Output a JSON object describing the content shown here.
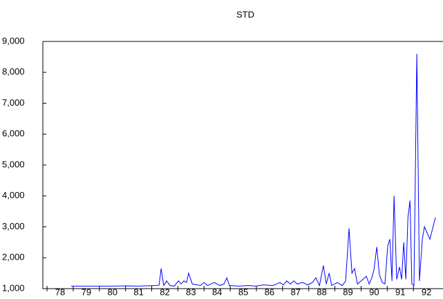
{
  "chart_data": {
    "type": "line",
    "title": "STD",
    "x": [
      1978.92,
      1979.64,
      1980.43,
      1981.09,
      1981.49,
      1982.15,
      1982.28,
      1982.36,
      1982.46,
      1982.57,
      1982.7,
      1982.86,
      1983.02,
      1983.12,
      1983.23,
      1983.33,
      1983.41,
      1983.55,
      1983.86,
      1984.0,
      1984.13,
      1984.39,
      1984.6,
      1984.76,
      1984.87,
      1984.97,
      1985.32,
      1985.71,
      1985.98,
      1986.24,
      1986.64,
      1986.9,
      1987.03,
      1987.16,
      1987.3,
      1987.43,
      1987.56,
      1987.77,
      1987.96,
      1988.14,
      1988.27,
      1988.41,
      1988.56,
      1988.67,
      1988.78,
      1988.88,
      1989.09,
      1989.28,
      1989.41,
      1989.54,
      1989.65,
      1989.75,
      1989.86,
      1990.07,
      1990.2,
      1990.31,
      1990.41,
      1990.49,
      1990.6,
      1990.7,
      1990.81,
      1990.91,
      1991.02,
      1991.1,
      1991.18,
      1991.26,
      1991.36,
      1991.47,
      1991.55,
      1991.63,
      1991.71,
      1991.79,
      1991.87,
      1991.94,
      1992.02,
      1992.13,
      1992.23,
      1992.34,
      1992.42,
      1992.63,
      1992.84
    ],
    "series": [
      {
        "name": "STD",
        "color": "#0000ff",
        "values": [
          1080,
          1080,
          1080,
          1090,
          1080,
          1100,
          1110,
          1650,
          1100,
          1250,
          1100,
          1080,
          1250,
          1150,
          1250,
          1200,
          1500,
          1150,
          1100,
          1200,
          1100,
          1200,
          1100,
          1150,
          1350,
          1100,
          1080,
          1100,
          1080,
          1120,
          1100,
          1200,
          1120,
          1250,
          1150,
          1250,
          1150,
          1200,
          1120,
          1200,
          1350,
          1100,
          1750,
          1150,
          1500,
          1100,
          1200,
          1100,
          1250,
          2950,
          1500,
          1650,
          1150,
          1300,
          1400,
          1150,
          1350,
          1600,
          2350,
          1450,
          1200,
          1150,
          2400,
          2600,
          1250,
          4000,
          1300,
          1700,
          1300,
          2500,
          1300,
          3300,
          3850,
          1150,
          1100,
          8600,
          1250,
          2600,
          3000,
          2600,
          3300
        ]
      }
    ],
    "xlim": [
      1977.84,
      1993.13
    ],
    "xticks": [
      {
        "value": 1978,
        "label": "78"
      },
      {
        "value": 1979,
        "label": "79"
      },
      {
        "value": 1980,
        "label": "80"
      },
      {
        "value": 1981,
        "label": "81"
      },
      {
        "value": 1982,
        "label": "82"
      },
      {
        "value": 1983,
        "label": "83"
      },
      {
        "value": 1984,
        "label": "84"
      },
      {
        "value": 1985,
        "label": "85"
      },
      {
        "value": 1986,
        "label": "86"
      },
      {
        "value": 1987,
        "label": "87"
      },
      {
        "value": 1988,
        "label": "88"
      },
      {
        "value": 1989,
        "label": "89"
      },
      {
        "value": 1990,
        "label": "90"
      },
      {
        "value": 1991,
        "label": "91"
      },
      {
        "value": 1992,
        "label": "92"
      }
    ],
    "ylim": [
      1000,
      9000
    ],
    "yticks": [
      {
        "value": 1000,
        "label": "1,000"
      },
      {
        "value": 2000,
        "label": "2,000"
      },
      {
        "value": 3000,
        "label": "3,000"
      },
      {
        "value": 4000,
        "label": "4,000"
      },
      {
        "value": 5000,
        "label": "5,000"
      },
      {
        "value": 6000,
        "label": "6,000"
      },
      {
        "value": 7000,
        "label": "7,000"
      },
      {
        "value": 8000,
        "label": "8,000"
      },
      {
        "value": 9000,
        "label": "9,000"
      }
    ],
    "grid": false
  }
}
